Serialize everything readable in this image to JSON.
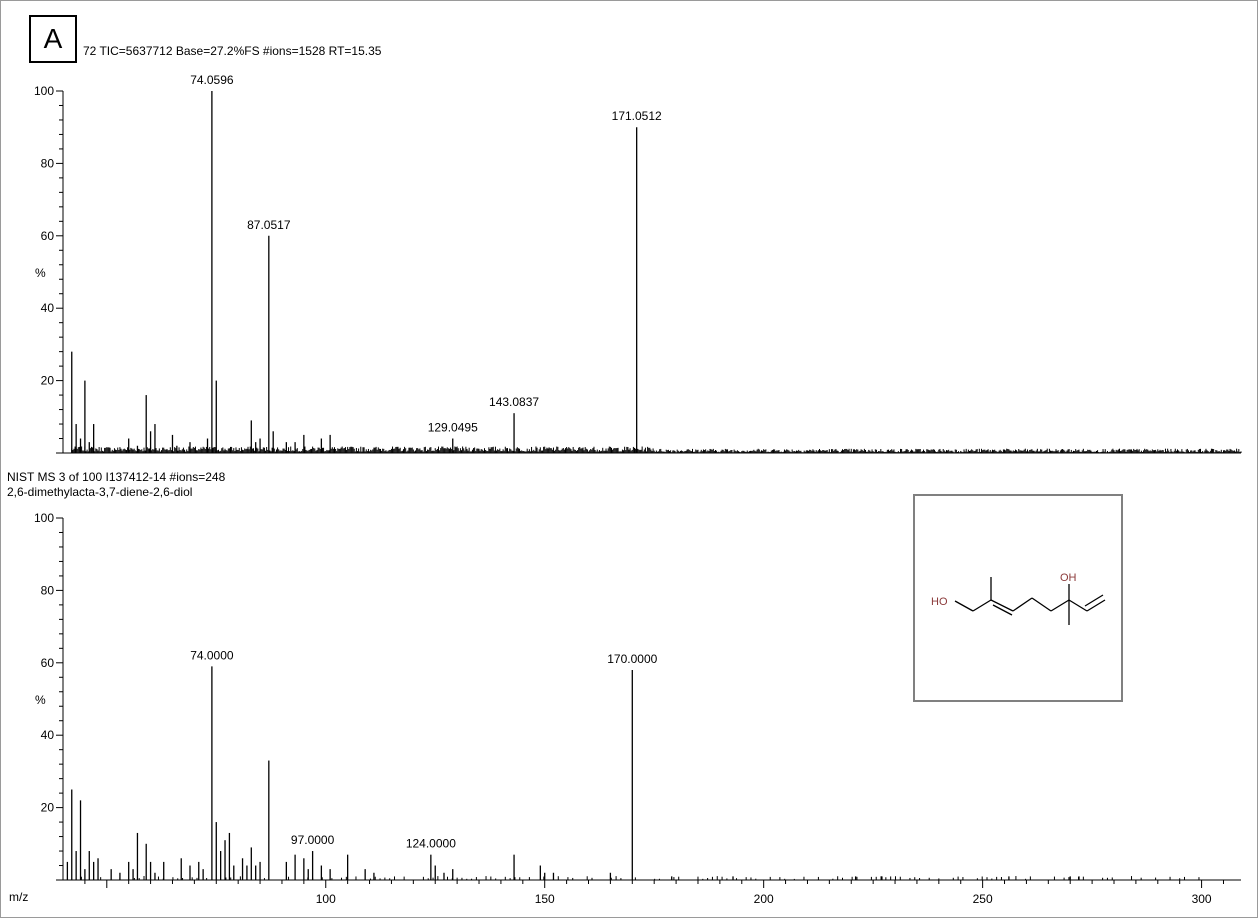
{
  "panel_letter": "A",
  "chart_data": [
    {
      "type": "bar",
      "header": "72  TIC=5637712  Base=27.2%FS  #ions=1528  RT=15.35",
      "ylabel": "%",
      "ylim": [
        0,
        100
      ],
      "yticks": [
        "20",
        "40",
        "60",
        "80",
        "100"
      ],
      "xlim": [
        40,
        309
      ],
      "x": [
        42,
        43,
        44,
        45,
        46,
        47,
        55,
        57,
        59,
        60,
        61,
        65,
        66,
        69,
        73,
        74,
        75,
        83,
        84,
        85,
        87,
        88,
        91,
        93,
        95,
        99,
        101,
        129,
        143,
        171
      ],
      "values": [
        28,
        8,
        4,
        20,
        3,
        8,
        4,
        2,
        16,
        6,
        8,
        5,
        2,
        3,
        4,
        100,
        20,
        9,
        3,
        4,
        60,
        6,
        3,
        3,
        5,
        4,
        5,
        4,
        11,
        90
      ],
      "labels": [
        {
          "x": 74,
          "y": 100,
          "text": "74.0596"
        },
        {
          "x": 87,
          "y": 60,
          "text": "87.0517"
        },
        {
          "x": 129,
          "y": 4,
          "text": "129.0495"
        },
        {
          "x": 143,
          "y": 11,
          "text": "143.0837"
        },
        {
          "x": 171,
          "y": 90,
          "text": "171.0512"
        }
      ]
    },
    {
      "type": "bar",
      "header": "NIST MS 3 of 100 I137412-14  #ions=248",
      "subheader": "2,6-dimethylacta-3,7-diene-2,6-diol",
      "ylabel": "%",
      "xlabel": "m/z",
      "ylim": [
        0,
        100
      ],
      "yticks": [
        "20",
        "40",
        "60",
        "80",
        "100"
      ],
      "xlim": [
        40,
        309
      ],
      "xticks": [
        "100",
        "150",
        "200",
        "250",
        "300"
      ],
      "x": [
        41,
        42,
        43,
        44,
        45,
        46,
        47,
        48,
        51,
        53,
        55,
        56,
        57,
        59,
        60,
        61,
        63,
        67,
        69,
        71,
        72,
        74,
        75,
        76,
        77,
        78,
        79,
        81,
        82,
        83,
        84,
        85,
        87,
        91,
        93,
        95,
        96,
        97,
        99,
        101,
        105,
        109,
        111,
        124,
        125,
        127,
        129,
        143,
        149,
        150,
        152,
        165,
        170,
        179,
        193,
        221,
        227,
        256,
        270,
        272
      ],
      "values": [
        5,
        25,
        8,
        22,
        3,
        8,
        5,
        6,
        3,
        2,
        5,
        3,
        13,
        10,
        5,
        2,
        5,
        6,
        4,
        5,
        3,
        59,
        16,
        8,
        11,
        13,
        4,
        6,
        4,
        9,
        4,
        5,
        33,
        5,
        7,
        6,
        3,
        8,
        4,
        3,
        7,
        3,
        2,
        7,
        4,
        2,
        3,
        7,
        4,
        2,
        2,
        2,
        58,
        1,
        1,
        1,
        1,
        1,
        1,
        1
      ],
      "labels": [
        {
          "x": 74,
          "y": 59,
          "text": "74.0000"
        },
        {
          "x": 97,
          "y": 8,
          "text": "97.0000"
        },
        {
          "x": 124,
          "y": 7,
          "text": "124.0000"
        },
        {
          "x": 170,
          "y": 58,
          "text": "170.0000"
        }
      ]
    }
  ],
  "structure": {
    "ho_label": "HO",
    "oh_label": "OH",
    "hetero_color": "#8b3a3a"
  }
}
